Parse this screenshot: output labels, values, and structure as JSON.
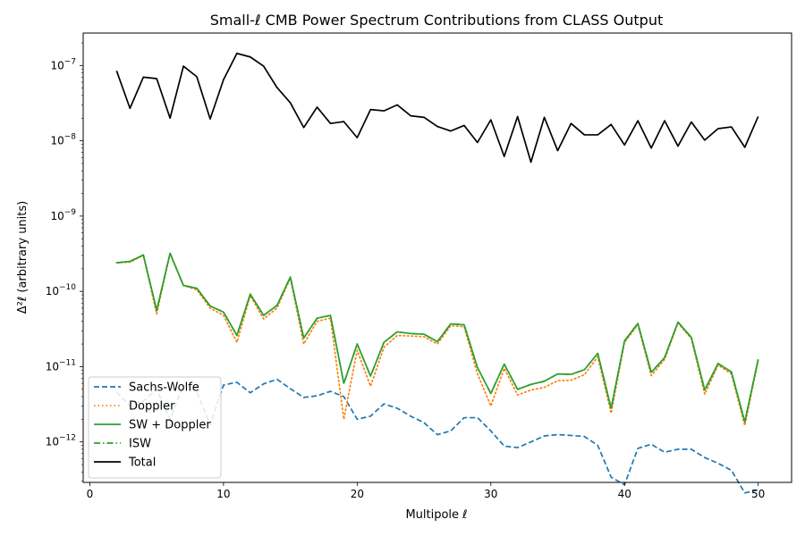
{
  "chart_data": {
    "type": "line",
    "title": "Small-ℓ CMB Power Spectrum Contributions from CLASS Output",
    "xlabel": "Multipole ℓ",
    "ylabel": "Δ²ℓ (arbitrary units)",
    "xlim": [
      -0.5,
      52.5
    ],
    "ylim": [
      2.9e-13,
      2.7e-07
    ],
    "yscale": "log",
    "xticks": [
      0,
      10,
      20,
      30,
      40,
      50
    ],
    "yticks": [
      {
        "value": 1e-12,
        "label": "10^-12"
      },
      {
        "value": 1e-11,
        "label": "10^-11"
      },
      {
        "value": 1e-10,
        "label": "10^-10"
      },
      {
        "value": 1e-09,
        "label": "10^-9"
      },
      {
        "value": 1e-08,
        "label": "10^-8"
      },
      {
        "value": 1e-07,
        "label": "10^-7"
      }
    ],
    "grid": false,
    "legend_position": "lower-left",
    "x": [
      2,
      3,
      4,
      5,
      6,
      7,
      8,
      9,
      10,
      11,
      12,
      13,
      14,
      15,
      16,
      17,
      18,
      19,
      20,
      21,
      22,
      23,
      24,
      25,
      26,
      27,
      28,
      29,
      30,
      31,
      32,
      33,
      34,
      35,
      36,
      37,
      38,
      39,
      40,
      41,
      42,
      43,
      44,
      45,
      46,
      47,
      48,
      49,
      50
    ],
    "series": [
      {
        "name": "Sachs-Wolfe",
        "color": "#1f77b4",
        "style": "dashed",
        "values": [
          4.6e-12,
          3e-12,
          3.5e-12,
          5e-12,
          2e-12,
          5.7e-12,
          4.6e-12,
          1.7e-12,
          5.7e-12,
          6.2e-12,
          4.5e-12,
          5.9e-12,
          6.8e-12,
          5.1e-12,
          3.9e-12,
          4.1e-12,
          4.7e-12,
          4e-12,
          2e-12,
          2.2e-12,
          3.2e-12,
          2.8e-12,
          2.2e-12,
          1.8e-12,
          1.25e-12,
          1.4e-12,
          2.1e-12,
          2.1e-12,
          1.4e-12,
          8.8e-13,
          8.4e-13,
          1e-12,
          1.2e-12,
          1.25e-12,
          1.22e-12,
          1.18e-12,
          9e-13,
          3.4e-13,
          2.7e-13,
          8.2e-13,
          9.3e-13,
          7.3e-13,
          8e-13,
          8e-13,
          6.2e-13,
          5.2e-13,
          4.2e-13,
          2.1e-13,
          2.3e-13
        ]
      },
      {
        "name": "Doppler",
        "color": "#ff7f0e",
        "style": "dotted",
        "values": [
          2.4e-10,
          2.45e-10,
          3e-10,
          5e-11,
          3.2e-10,
          1.2e-10,
          1.05e-10,
          6e-11,
          4.8e-11,
          2.1e-11,
          8.8e-11,
          4.3e-11,
          6e-11,
          1.5e-10,
          2e-11,
          4e-11,
          4.4e-11,
          2e-12,
          1.65e-11,
          5.5e-12,
          1.8e-11,
          2.6e-11,
          2.55e-11,
          2.5e-11,
          2e-11,
          3.5e-11,
          3.4e-11,
          8e-12,
          3e-12,
          9.5e-12,
          4.2e-12,
          4.9e-12,
          5.3e-12,
          6.5e-12,
          6.6e-12,
          7.8e-12,
          1.35e-11,
          2.4e-12,
          2.1e-11,
          3.6e-11,
          7.6e-12,
          1.25e-11,
          3.8e-11,
          2.35e-11,
          4.3e-12,
          1.05e-11,
          8e-12,
          1.65e-12,
          1.2e-11
        ]
      },
      {
        "name": "SW + Doppler",
        "color": "#2ca02c",
        "style": "solid",
        "values": [
          2.4e-10,
          2.5e-10,
          3.05e-10,
          5.6e-11,
          3.2e-10,
          1.2e-10,
          1.1e-10,
          6.4e-11,
          5.3e-11,
          2.6e-11,
          9.2e-11,
          4.8e-11,
          6.5e-11,
          1.55e-10,
          2.4e-11,
          4.4e-11,
          4.8e-11,
          6e-12,
          2e-11,
          7.5e-12,
          2.1e-11,
          2.9e-11,
          2.75e-11,
          2.7e-11,
          2.15e-11,
          3.7e-11,
          3.6e-11,
          9.7e-12,
          4.4e-12,
          1.08e-11,
          5e-12,
          5.8e-12,
          6.4e-12,
          8e-12,
          7.9e-12,
          9.1e-12,
          1.5e-11,
          2.8e-12,
          2.2e-11,
          3.75e-11,
          8.4e-12,
          1.32e-11,
          3.9e-11,
          2.45e-11,
          4.9e-12,
          1.1e-11,
          8.5e-12,
          1.85e-12,
          1.25e-11
        ]
      },
      {
        "name": "ISW",
        "color": "#2ca02c",
        "style": "dashdot",
        "values": [
          2.4e-10,
          2.5e-10,
          3.05e-10,
          5.6e-11,
          3.2e-10,
          1.2e-10,
          1.1e-10,
          6.4e-11,
          5.3e-11,
          2.6e-11,
          9.2e-11,
          4.8e-11,
          6.5e-11,
          1.55e-10,
          2.4e-11,
          4.4e-11,
          4.8e-11,
          6e-12,
          2e-11,
          7.5e-12,
          2.1e-11,
          2.9e-11,
          2.75e-11,
          2.7e-11,
          2.15e-11,
          3.7e-11,
          3.6e-11,
          9.7e-12,
          4.4e-12,
          1.08e-11,
          5e-12,
          5.8e-12,
          6.4e-12,
          8e-12,
          7.9e-12,
          9.1e-12,
          1.5e-11,
          2.8e-12,
          2.2e-11,
          3.75e-11,
          8.4e-12,
          1.32e-11,
          3.9e-11,
          2.45e-11,
          4.9e-12,
          1.1e-11,
          8.5e-12,
          1.85e-12,
          1.25e-11
        ]
      },
      {
        "name": "Total",
        "color": "#000000",
        "style": "solid",
        "values": [
          8.5e-08,
          2.7e-08,
          7e-08,
          6.7e-08,
          2e-08,
          9.8e-08,
          7.1e-08,
          1.95e-08,
          6.5e-08,
          1.45e-07,
          1.3e-07,
          9.8e-08,
          5.1e-08,
          3.2e-08,
          1.5e-08,
          2.8e-08,
          1.7e-08,
          1.8e-08,
          1.1e-08,
          2.6e-08,
          2.5e-08,
          3e-08,
          2.15e-08,
          2.05e-08,
          1.55e-08,
          1.35e-08,
          1.6e-08,
          9.5e-09,
          1.9e-08,
          6.2e-09,
          2.1e-08,
          5.2e-09,
          2.05e-08,
          7.4e-09,
          1.7e-08,
          1.2e-08,
          1.2e-08,
          1.65e-08,
          8.8e-09,
          1.85e-08,
          8e-09,
          1.85e-08,
          8.5e-09,
          1.78e-08,
          1.02e-08,
          1.45e-08,
          1.53e-08,
          8.2e-09,
          2.1e-08
        ]
      }
    ]
  }
}
